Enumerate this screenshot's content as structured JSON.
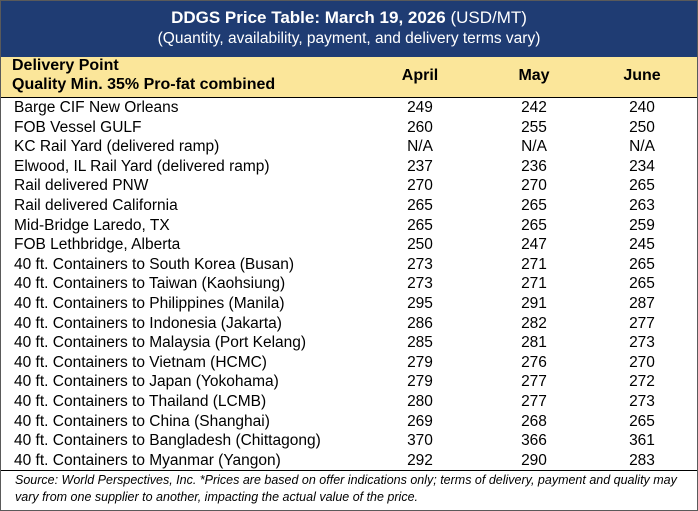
{
  "title": {
    "bold": "DDGS Price Table: March 19, 2026",
    "unit": "(USD/MT)",
    "subtitle": "(Quantity, availability, payment, and delivery terms vary)"
  },
  "header": {
    "col1_line1": "Delivery Point",
    "col1_line2": "Quality Min. 35% Pro-fat combined",
    "months": [
      "April",
      "May",
      "June"
    ]
  },
  "rows": [
    {
      "point": "Barge CIF New Orleans",
      "values": [
        "249",
        "242",
        "240"
      ]
    },
    {
      "point": "FOB Vessel GULF",
      "values": [
        "260",
        "255",
        "250"
      ]
    },
    {
      "point": "KC Rail Yard (delivered ramp)",
      "values": [
        "N/A",
        "N/A",
        "N/A"
      ]
    },
    {
      "point": "Elwood, IL Rail Yard (delivered ramp)",
      "values": [
        "237",
        "236",
        "234"
      ]
    },
    {
      "point": "Rail delivered PNW",
      "values": [
        "270",
        "270",
        "265"
      ]
    },
    {
      "point": "Rail delivered California",
      "values": [
        "265",
        "265",
        "263"
      ]
    },
    {
      "point": "Mid-Bridge Laredo, TX",
      "values": [
        "265",
        "265",
        "259"
      ]
    },
    {
      "point": "FOB Lethbridge, Alberta",
      "values": [
        "250",
        "247",
        "245"
      ]
    },
    {
      "point": "40 ft. Containers to South Korea (Busan)",
      "values": [
        "273",
        "271",
        "265"
      ]
    },
    {
      "point": "40 ft. Containers to Taiwan (Kaohsiung)",
      "values": [
        "273",
        "271",
        "265"
      ]
    },
    {
      "point": "40 ft. Containers to Philippines (Manila)",
      "values": [
        "295",
        "291",
        "287"
      ]
    },
    {
      "point": "40 ft. Containers to Indonesia (Jakarta)",
      "values": [
        "286",
        "282",
        "277"
      ]
    },
    {
      "point": "40 ft. Containers to Malaysia (Port Kelang)",
      "values": [
        "285",
        "281",
        "273"
      ]
    },
    {
      "point": "40 ft. Containers to Vietnam (HCMC)",
      "values": [
        "279",
        "276",
        "270"
      ]
    },
    {
      "point": "40 ft. Containers to Japan (Yokohama)",
      "values": [
        "279",
        "277",
        "272"
      ]
    },
    {
      "point": "40 ft. Containers to Thailand (LCMB)",
      "values": [
        "280",
        "277",
        "273"
      ]
    },
    {
      "point": "40 ft. Containers to China (Shanghai)",
      "values": [
        "269",
        "268",
        "265"
      ]
    },
    {
      "point": "40 ft. Containers to Bangladesh (Chittagong)",
      "values": [
        "370",
        "366",
        "361"
      ]
    },
    {
      "point": "40 ft. Containers to Myanmar (Yangon)",
      "values": [
        "292",
        "290",
        "283"
      ]
    }
  ],
  "source": "Source: World Perspectives, Inc. *Prices are based on offer indications only; terms of delivery, payment and quality may vary from one supplier to another, impacting the actual value of the price.",
  "colors": {
    "title_bg": "#1f3c73",
    "header_bg": "#fbe69a"
  }
}
